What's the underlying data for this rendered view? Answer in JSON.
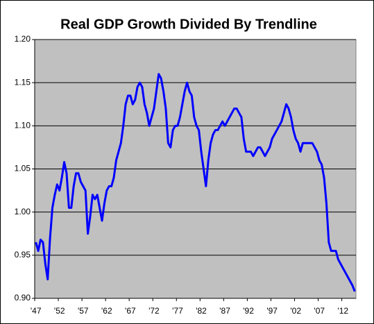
{
  "chart_data": {
    "type": "line",
    "title": "Real GDP Growth Divided By Trendline",
    "categories": [
      "'47",
      null,
      null,
      null,
      null,
      null,
      null,
      null,
      null,
      null,
      "'52",
      null,
      null,
      null,
      null,
      null,
      null,
      null,
      null,
      null,
      "'57",
      null,
      null,
      null,
      null,
      null,
      null,
      null,
      null,
      null,
      "'62",
      null,
      null,
      null,
      null,
      null,
      null,
      null,
      null,
      null,
      "'67",
      null,
      null,
      null,
      null,
      null,
      null,
      null,
      null,
      null,
      "'72",
      null,
      null,
      null,
      null,
      null,
      null,
      null,
      null,
      null,
      "'77",
      null,
      null,
      null,
      null,
      null,
      null,
      null,
      null,
      null,
      "'82",
      null,
      null,
      null,
      null,
      null,
      null,
      null,
      null,
      null,
      "'87",
      null,
      null,
      null,
      null,
      null,
      null,
      null,
      null,
      null,
      "'92",
      null,
      null,
      null,
      null,
      null,
      null,
      null,
      null,
      null,
      "'97",
      null,
      null,
      null,
      null,
      null,
      null,
      null,
      null,
      null,
      "'02",
      null,
      null,
      null,
      null,
      null,
      null,
      null,
      null,
      null,
      "'07",
      null,
      null,
      null,
      null,
      null,
      null,
      null,
      null,
      null,
      "'12",
      null,
      null,
      null,
      null,
      null
    ],
    "values": [
      0.965,
      0.955,
      0.968,
      0.965,
      0.94,
      0.922,
      0.97,
      1.005,
      1.02,
      1.032,
      1.025,
      1.04,
      1.058,
      1.045,
      1.005,
      1.005,
      1.03,
      1.045,
      1.045,
      1.035,
      1.03,
      1.025,
      0.975,
      0.995,
      1.02,
      1.015,
      1.02,
      1.005,
      0.99,
      1.01,
      1.025,
      1.03,
      1.03,
      1.04,
      1.06,
      1.07,
      1.08,
      1.1,
      1.125,
      1.135,
      1.135,
      1.125,
      1.13,
      1.145,
      1.15,
      1.145,
      1.125,
      1.115,
      1.1,
      1.11,
      1.12,
      1.14,
      1.16,
      1.155,
      1.14,
      1.12,
      1.08,
      1.075,
      1.095,
      1.1,
      1.1,
      1.11,
      1.125,
      1.14,
      1.15,
      1.14,
      1.135,
      1.11,
      1.1,
      1.095,
      1.07,
      1.05,
      1.03,
      1.06,
      1.08,
      1.09,
      1.095,
      1.095,
      1.1,
      1.105,
      1.1,
      1.105,
      1.11,
      1.115,
      1.12,
      1.12,
      1.115,
      1.11,
      1.085,
      1.07,
      1.07,
      1.07,
      1.065,
      1.07,
      1.075,
      1.075,
      1.07,
      1.065,
      1.07,
      1.075,
      1.085,
      1.09,
      1.095,
      1.1,
      1.105,
      1.115,
      1.125,
      1.12,
      1.11,
      1.095,
      1.085,
      1.08,
      1.07,
      1.08,
      1.08,
      1.08,
      1.08,
      1.08,
      1.075,
      1.07,
      1.06,
      1.055,
      1.04,
      1.01,
      0.965,
      0.955,
      0.955,
      0.955,
      0.945,
      0.94,
      0.935,
      0.93,
      0.925,
      0.92,
      0.915,
      0.908
    ],
    "color": "#0000ff",
    "ylim": [
      0.9,
      1.2
    ],
    "yticks": [
      {
        "value": 0.9,
        "label": "0.90"
      },
      0.95,
      {
        "value": 1,
        "label": "1.00"
      },
      1.05,
      {
        "value": 1.1,
        "label": "1.10"
      },
      1.15,
      {
        "value": 1.2,
        "label": "1.20"
      }
    ],
    "grid": true
  }
}
